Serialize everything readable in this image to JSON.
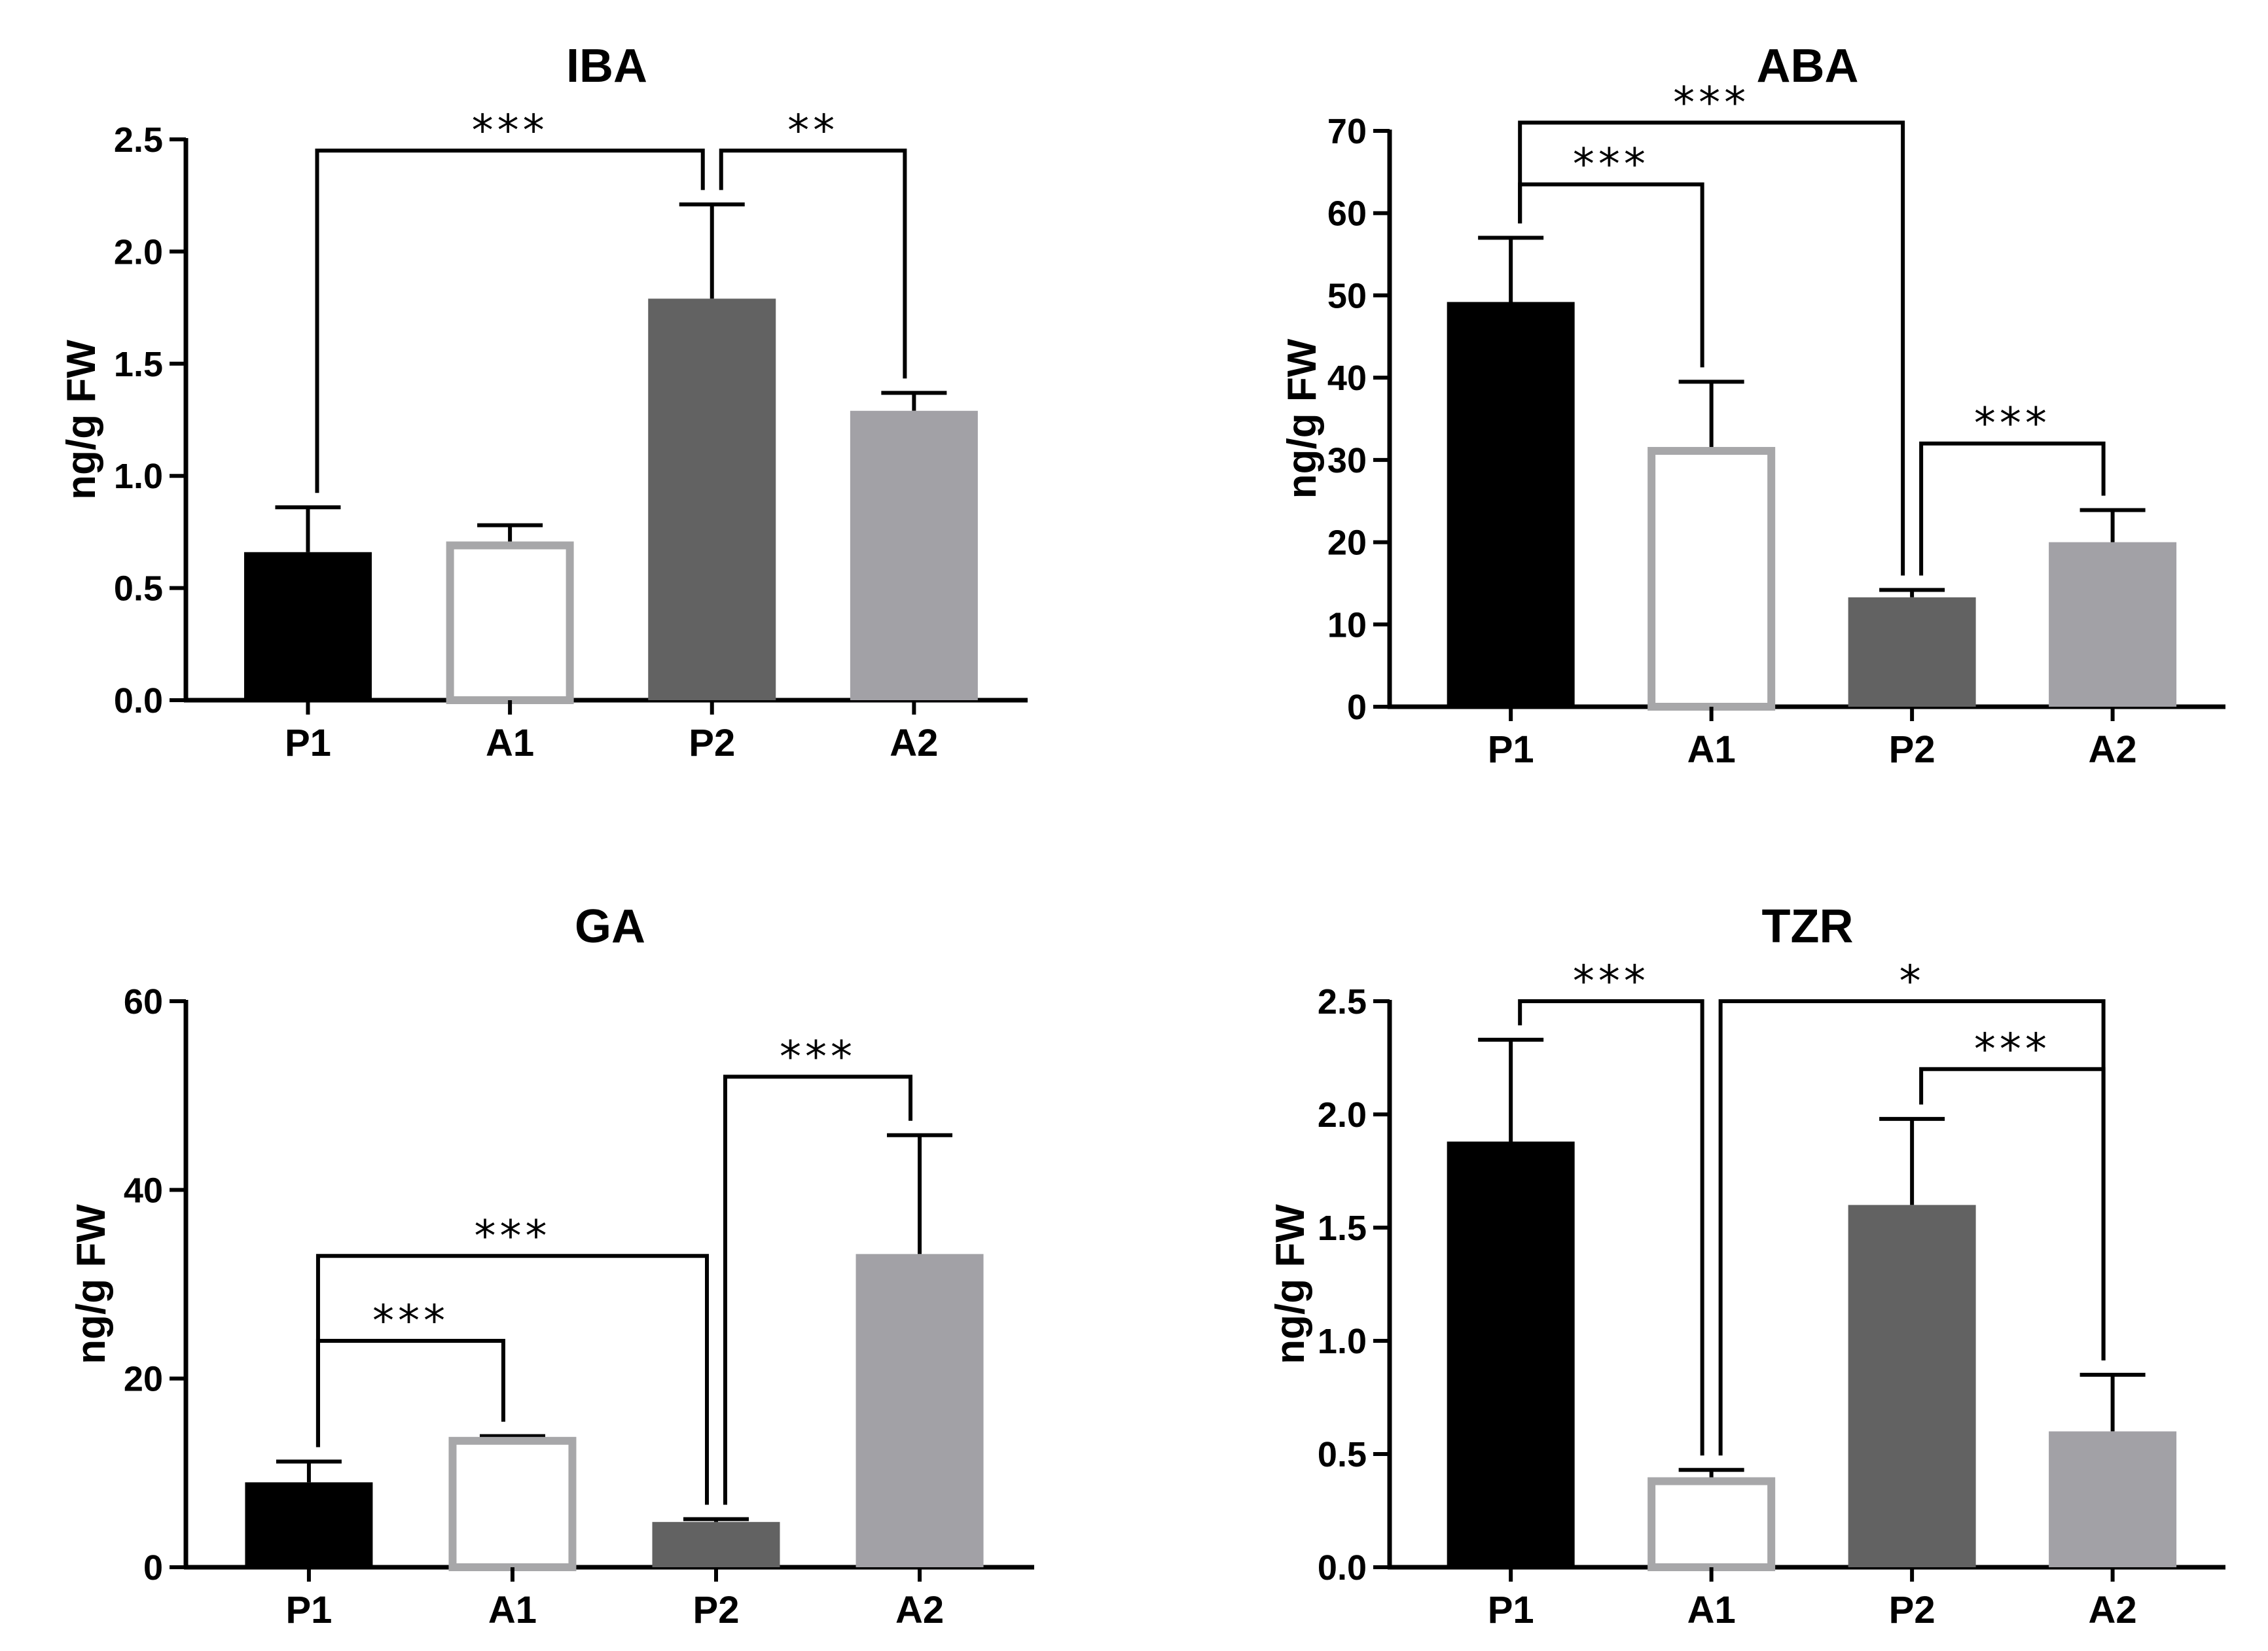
{
  "colors": {
    "P1": "#000000",
    "A1": "#a7a7a9",
    "P2": "#626262",
    "A2": "#a2a1a6",
    "axis": "#000000",
    "background": "#ffffff"
  },
  "chart_data": [
    {
      "type": "bar",
      "title": "IBA",
      "ylabel": "ng/g FW",
      "categories": [
        "P1",
        "A1",
        "P2",
        "A2"
      ],
      "values": [
        0.66,
        0.69,
        1.79,
        1.29
      ],
      "errors": [
        0.2,
        0.09,
        0.42,
        0.08
      ],
      "bar_styles": [
        "filled",
        "hollow",
        "filled",
        "filled"
      ],
      "ylim": [
        0,
        2.5
      ],
      "yticks": [
        0,
        0.5,
        1.0,
        1.5,
        2.0,
        2.5
      ],
      "ytick_labels": [
        "0.0",
        "0.5",
        "1.0",
        "1.5",
        "2.0",
        "2.5"
      ],
      "comparisons": [
        {
          "from": "P1",
          "to": "P2",
          "label": "***",
          "level": 2.45
        },
        {
          "from": "P2",
          "to": "A2",
          "label": "**",
          "level": 2.45
        }
      ]
    },
    {
      "type": "bar",
      "title": "ABA",
      "ylabel": "ng/g FW",
      "categories": [
        "P1",
        "A1",
        "P2",
        "A2"
      ],
      "values": [
        49.2,
        31.1,
        13.3,
        20.0
      ],
      "errors": [
        7.8,
        8.4,
        0.9,
        3.9
      ],
      "bar_styles": [
        "filled",
        "hollow",
        "filled",
        "filled"
      ],
      "ylim": [
        0,
        70
      ],
      "yticks": [
        0,
        10,
        20,
        30,
        40,
        50,
        60,
        70
      ],
      "ytick_labels": [
        "0",
        "10",
        "20",
        "30",
        "40",
        "50",
        "60",
        "70"
      ],
      "comparisons": [
        {
          "from": "P1",
          "to": "P2",
          "label": "***",
          "level": 71
        },
        {
          "from": "P1",
          "to": "A1",
          "label": "***",
          "level": 63.5
        },
        {
          "from": "P2",
          "to": "A2",
          "label": "***",
          "level": 32
        }
      ]
    },
    {
      "type": "bar",
      "title": "GA",
      "ylabel": "ng/g FW",
      "categories": [
        "P1",
        "A1",
        "P2",
        "A2"
      ],
      "values": [
        9.0,
        13.4,
        4.8,
        33.2
      ],
      "errors": [
        2.2,
        0.5,
        0.3,
        12.6
      ],
      "bar_styles": [
        "filled",
        "hollow",
        "filled",
        "filled"
      ],
      "ylim": [
        0,
        60
      ],
      "yticks": [
        0,
        20,
        40,
        60
      ],
      "ytick_labels": [
        "0",
        "20",
        "40",
        "60"
      ],
      "comparisons": [
        {
          "from": "P1",
          "to": "P2",
          "label": "***",
          "level": 33
        },
        {
          "from": "P1",
          "to": "A1",
          "label": "***",
          "level": 24
        },
        {
          "from": "P2",
          "to": "A2",
          "label": "***",
          "level": 52
        }
      ]
    },
    {
      "type": "bar",
      "title": "TZR",
      "ylabel": "ng/g FW",
      "categories": [
        "P1",
        "A1",
        "P2",
        "A2"
      ],
      "values": [
        1.88,
        0.38,
        1.6,
        0.6
      ],
      "errors": [
        0.45,
        0.05,
        0.38,
        0.25
      ],
      "bar_styles": [
        "filled",
        "hollow",
        "filled",
        "filled"
      ],
      "ylim": [
        0,
        2.5
      ],
      "yticks": [
        0,
        0.5,
        1.0,
        1.5,
        2.0,
        2.5
      ],
      "ytick_labels": [
        "0.0",
        "0.5",
        "1.0",
        "1.5",
        "2.0",
        "2.5"
      ],
      "comparisons": [
        {
          "from": "P1",
          "to": "A1",
          "label": "***",
          "level": 2.5
        },
        {
          "from": "A1",
          "to": "A2",
          "label": "*",
          "level": 2.5
        },
        {
          "from": "P2",
          "to": "A2",
          "label": "***",
          "level": 2.2
        }
      ]
    }
  ]
}
